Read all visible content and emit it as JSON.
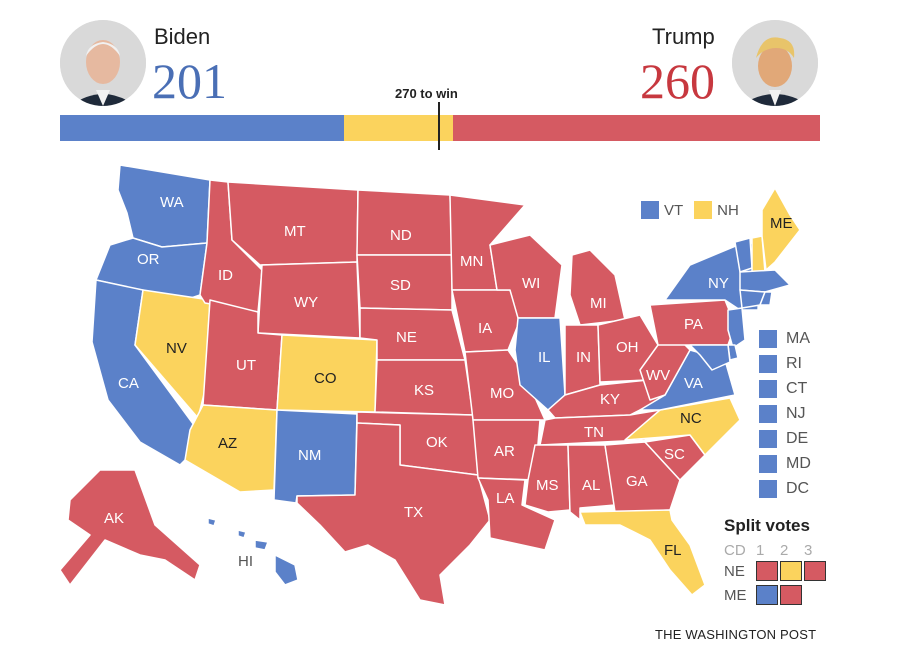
{
  "colors": {
    "dem": "#5b81c9",
    "rep": "#d55a62",
    "tossup": "#fbd35d",
    "stroke": "#ffffff"
  },
  "header": {
    "biden": {
      "name": "Biden",
      "votes": "201",
      "color": "#4a6fb5"
    },
    "trump": {
      "name": "Trump",
      "votes": "260",
      "color": "#c7383f"
    },
    "win_label": "270 to win"
  },
  "bar": {
    "total": 538,
    "dem": 201,
    "tossup": 77,
    "rep": 260
  },
  "states": [
    {
      "code": "WA",
      "party": "dem"
    },
    {
      "code": "OR",
      "party": "dem"
    },
    {
      "code": "CA",
      "party": "dem"
    },
    {
      "code": "NV",
      "party": "tossup"
    },
    {
      "code": "ID",
      "party": "rep"
    },
    {
      "code": "MT",
      "party": "rep"
    },
    {
      "code": "WY",
      "party": "rep"
    },
    {
      "code": "UT",
      "party": "rep"
    },
    {
      "code": "AZ",
      "party": "tossup"
    },
    {
      "code": "CO",
      "party": "tossup"
    },
    {
      "code": "NM",
      "party": "dem"
    },
    {
      "code": "ND",
      "party": "rep"
    },
    {
      "code": "SD",
      "party": "rep"
    },
    {
      "code": "NE",
      "party": "rep"
    },
    {
      "code": "KS",
      "party": "rep"
    },
    {
      "code": "OK",
      "party": "rep"
    },
    {
      "code": "TX",
      "party": "rep"
    },
    {
      "code": "MN",
      "party": "rep"
    },
    {
      "code": "IA",
      "party": "rep"
    },
    {
      "code": "MO",
      "party": "rep"
    },
    {
      "code": "AR",
      "party": "rep"
    },
    {
      "code": "LA",
      "party": "rep"
    },
    {
      "code": "WI",
      "party": "rep"
    },
    {
      "code": "IL",
      "party": "dem"
    },
    {
      "code": "MI",
      "party": "rep"
    },
    {
      "code": "IN",
      "party": "rep"
    },
    {
      "code": "OH",
      "party": "rep"
    },
    {
      "code": "KY",
      "party": "rep"
    },
    {
      "code": "TN",
      "party": "rep"
    },
    {
      "code": "MS",
      "party": "rep"
    },
    {
      "code": "AL",
      "party": "rep"
    },
    {
      "code": "GA",
      "party": "rep"
    },
    {
      "code": "FL",
      "party": "tossup"
    },
    {
      "code": "SC",
      "party": "rep"
    },
    {
      "code": "NC",
      "party": "tossup"
    },
    {
      "code": "VA",
      "party": "dem"
    },
    {
      "code": "WV",
      "party": "rep"
    },
    {
      "code": "PA",
      "party": "rep"
    },
    {
      "code": "NY",
      "party": "dem"
    },
    {
      "code": "ME",
      "party": "tossup"
    },
    {
      "code": "AK",
      "party": "rep"
    },
    {
      "code": "HI",
      "party": "dem"
    }
  ],
  "legend_vt_nh": [
    {
      "code": "VT",
      "party": "dem"
    },
    {
      "code": "NH",
      "party": "tossup"
    }
  ],
  "small_states": [
    {
      "code": "MA",
      "party": "dem"
    },
    {
      "code": "RI",
      "party": "dem"
    },
    {
      "code": "CT",
      "party": "dem"
    },
    {
      "code": "NJ",
      "party": "dem"
    },
    {
      "code": "DE",
      "party": "dem"
    },
    {
      "code": "MD",
      "party": "dem"
    },
    {
      "code": "DC",
      "party": "dem"
    }
  ],
  "split_votes": {
    "title": "Split votes",
    "columns": [
      "CD",
      "1",
      "2",
      "3"
    ],
    "rows": [
      {
        "state": "NE",
        "districts": [
          "rep",
          "tossup",
          "rep"
        ]
      },
      {
        "state": "ME",
        "districts": [
          "dem",
          "rep"
        ]
      }
    ]
  },
  "credit": "THE WASHINGTON POST"
}
